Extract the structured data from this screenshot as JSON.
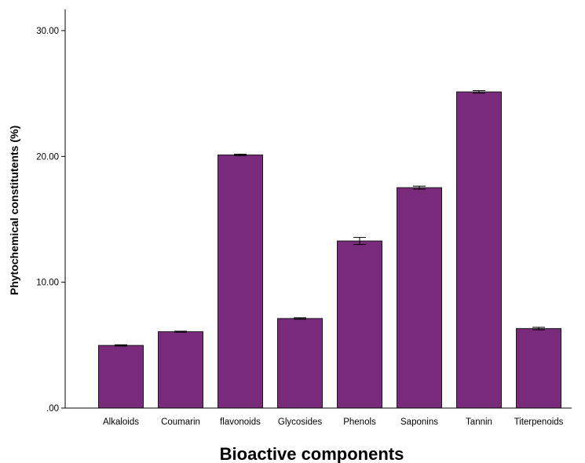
{
  "chart_data": {
    "type": "bar",
    "categories": [
      "Alkaloids",
      "Coumarin",
      "flavonoids",
      "Glycosides",
      "Phenols",
      "Saponins",
      "Tannin",
      "Titerpenoids"
    ],
    "values": [
      4.98,
      6.07,
      20.12,
      7.12,
      13.28,
      17.52,
      25.13,
      6.32
    ],
    "error": [
      0.05,
      0.04,
      0.06,
      0.06,
      0.28,
      0.12,
      0.1,
      0.1
    ],
    "xlabel": "Bioactive components",
    "ylabel": "Phytochemical constitutents (%)",
    "ylim": [
      0,
      30
    ],
    "yticks": [
      ".00",
      "10.00",
      "20.00",
      "30.00"
    ],
    "ytick_values": [
      0,
      10,
      20,
      30
    ],
    "grid": false,
    "bar_color": "#7a2a7b",
    "bar_edge_color": "#1a1a1a"
  }
}
